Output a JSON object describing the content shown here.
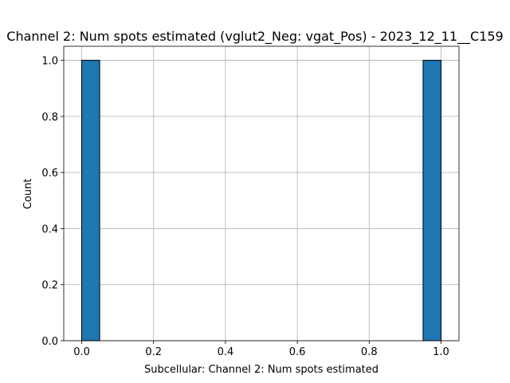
{
  "chart_data": {
    "type": "bar",
    "title": "Channel 2: Num spots estimated (vglut2_Neg: vgat_Pos) - 2023_12_11__C159",
    "xlabel": "Subcellular: Channel 2: Num spots estimated",
    "ylabel": "Count",
    "xlim": [
      -0.05,
      1.05
    ],
    "ylim": [
      0,
      1.05
    ],
    "xticks": [
      "0.0",
      "0.2",
      "0.4",
      "0.6",
      "0.8",
      "1.0"
    ],
    "yticks": [
      "0.0",
      "0.2",
      "0.4",
      "0.6",
      "0.8",
      "1.0"
    ],
    "grid": true,
    "bar_color": "#1f77b4",
    "bins": [
      {
        "x0": 0.0,
        "x1": 0.05,
        "count": 1
      },
      {
        "x0": 0.95,
        "x1": 1.0,
        "count": 1
      }
    ]
  }
}
